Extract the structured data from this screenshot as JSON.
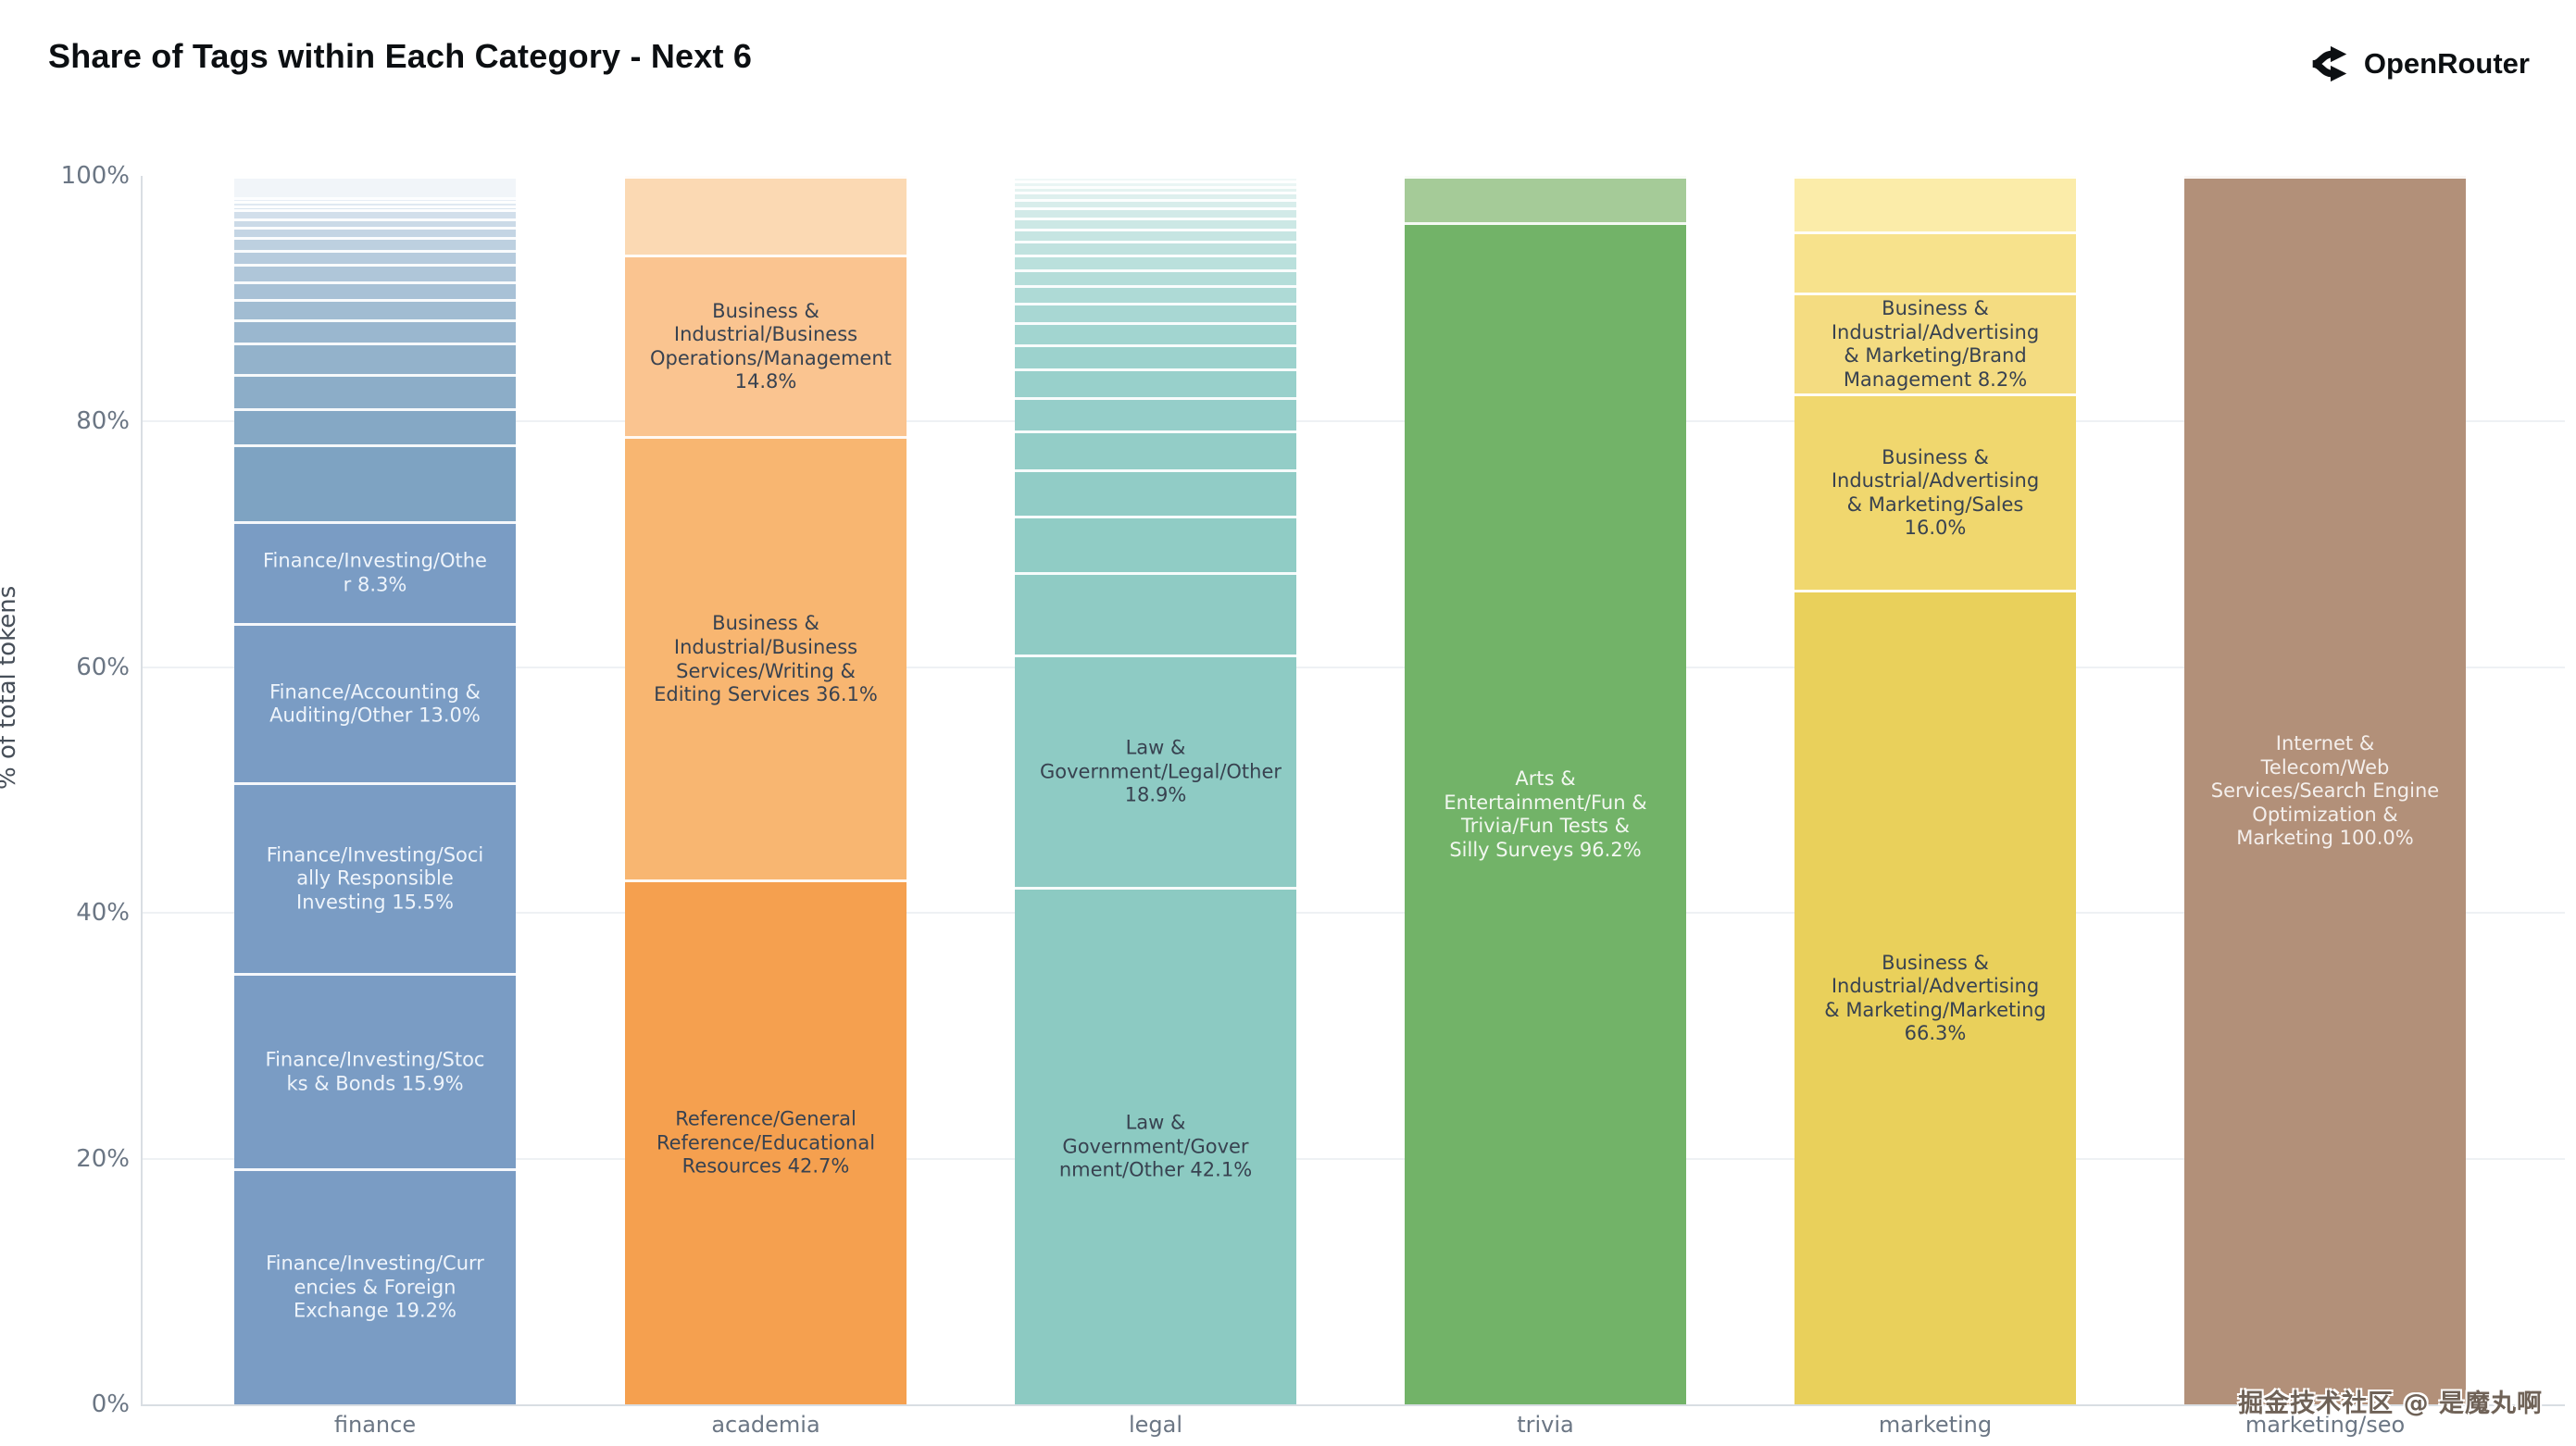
{
  "header": {
    "title": "Share of Tags within Each Category - Next 6",
    "brand": "OpenRouter"
  },
  "watermark": "掘金技术社区 @ 是魔丸啊",
  "chart_data": {
    "type": "bar",
    "stacked": true,
    "orientation": "vertical",
    "title": "Share of Tags within Each Category - Next 6",
    "xlabel": "",
    "ylabel": "% of total tokens",
    "ylim": [
      0,
      100
    ],
    "yticks": [
      "0%",
      "20%",
      "40%",
      "60%",
      "80%",
      "100%"
    ],
    "grid": "horizontal-faint",
    "legend": "none",
    "categories": [
      "finance",
      "academia",
      "legal",
      "trivia",
      "marketing",
      "marketing/seo"
    ],
    "bars": [
      {
        "category": "finance",
        "base_color": "#7a9cc4",
        "segments": [
          {
            "tag": "",
            "pct": 1.7,
            "color": "#f1f5f9",
            "label": "",
            "label_color": ""
          },
          {
            "tag": "",
            "pct": 0.35,
            "color": "#e7eef5",
            "label": "",
            "label_color": ""
          },
          {
            "tag": "",
            "pct": 0.35,
            "color": "#e0e9f2",
            "label": "",
            "label_color": ""
          },
          {
            "tag": "",
            "pct": 0.3,
            "color": "#d9e4ee",
            "label": "",
            "label_color": ""
          },
          {
            "tag": "",
            "pct": 0.75,
            "color": "#d2dfeb",
            "label": "",
            "label_color": ""
          },
          {
            "tag": "",
            "pct": 0.7,
            "color": "#cbdae7",
            "label": "",
            "label_color": ""
          },
          {
            "tag": "",
            "pct": 0.85,
            "color": "#c4d5e4",
            "label": "",
            "label_color": ""
          },
          {
            "tag": "",
            "pct": 1.0,
            "color": "#bdd0e0",
            "label": "",
            "label_color": ""
          },
          {
            "tag": "",
            "pct": 1.2,
            "color": "#b6cbdd",
            "label": "",
            "label_color": ""
          },
          {
            "tag": "",
            "pct": 1.4,
            "color": "#afc6d9",
            "label": "",
            "label_color": ""
          },
          {
            "tag": "",
            "pct": 1.45,
            "color": "#a8c1d6",
            "label": "",
            "label_color": ""
          },
          {
            "tag": "",
            "pct": 1.65,
            "color": "#a1bcd2",
            "label": "",
            "label_color": ""
          },
          {
            "tag": "",
            "pct": 1.9,
            "color": "#9ab7cf",
            "label": "",
            "label_color": ""
          },
          {
            "tag": "",
            "pct": 2.5,
            "color": "#93b2cb",
            "label": "",
            "label_color": ""
          },
          {
            "tag": "",
            "pct": 2.8,
            "color": "#8cadc8",
            "label": "",
            "label_color": ""
          },
          {
            "tag": "",
            "pct": 3.0,
            "color": "#85a8c5",
            "label": "",
            "label_color": ""
          },
          {
            "tag": "",
            "pct": 6.2,
            "color": "#7ea3c2",
            "label": "",
            "label_color": ""
          },
          {
            "tag": "Finance/Investing/Other",
            "pct": 8.3,
            "color": "#7a9cc4",
            "label": "Finance/Investing/Othe\nr 8.3%",
            "label_color": "#eef4fb"
          },
          {
            "tag": "Finance/Accounting & Auditing/Other",
            "pct": 13.0,
            "color": "#7a9cc4",
            "label": "Finance/Accounting &\nAuditing/Other 13.0%",
            "label_color": "#eef4fb"
          },
          {
            "tag": "Finance/Investing/Socially Responsible Investing",
            "pct": 15.5,
            "color": "#7a9cc4",
            "label": "Finance/Investing/Soci\nally Responsible\nInvesting 15.5%",
            "label_color": "#eef4fb"
          },
          {
            "tag": "Finance/Investing/Stocks & Bonds",
            "pct": 15.9,
            "color": "#7a9cc4",
            "label": "Finance/Investing/Stoc\nks & Bonds 15.9%",
            "label_color": "#eef4fb"
          },
          {
            "tag": "Finance/Investing/Currencies & Foreign Exchange",
            "pct": 19.2,
            "color": "#7a9cc4",
            "label": "Finance/Investing/Curr\nencies & Foreign\nExchange 19.2%",
            "label_color": "#eef4fb"
          }
        ]
      },
      {
        "category": "academia",
        "base_color": "#f5a04f",
        "segments": [
          {
            "tag": "",
            "pct": 6.4,
            "color": "#fbd9b3",
            "label": "",
            "label_color": ""
          },
          {
            "tag": "Business & Industrial/Business Operations/Management",
            "pct": 14.8,
            "color": "#fac490",
            "label": "Business &\nIndustrial/Business\nOperations/Management\n14.8%",
            "label_color": "#384250"
          },
          {
            "tag": "Business & Industrial/Business Services/Writing & Editing Services",
            "pct": 36.1,
            "color": "#f8b671",
            "label": "Business &\nIndustrial/Business\nServices/Writing &\nEditing Services 36.1%",
            "label_color": "#384250"
          },
          {
            "tag": "Reference/General Reference/Educational Resources",
            "pct": 42.7,
            "color": "#f5a04f",
            "label": "Reference/General\nReference/Educational\nResources 42.7%",
            "label_color": "#384250"
          }
        ]
      },
      {
        "category": "legal",
        "base_color": "#8ecbc4",
        "segments": [
          {
            "tag": "",
            "pct": 0.4,
            "color": "#f0f8f7",
            "label": "",
            "label_color": ""
          },
          {
            "tag": "",
            "pct": 0.4,
            "color": "#eaf5f4",
            "label": "",
            "label_color": ""
          },
          {
            "tag": "",
            "pct": 0.5,
            "color": "#e4f3f1",
            "label": "",
            "label_color": ""
          },
          {
            "tag": "",
            "pct": 0.6,
            "color": "#def0ee",
            "label": "",
            "label_color": ""
          },
          {
            "tag": "",
            "pct": 0.7,
            "color": "#d8edeb",
            "label": "",
            "label_color": ""
          },
          {
            "tag": "",
            "pct": 0.8,
            "color": "#d2eae8",
            "label": "",
            "label_color": ""
          },
          {
            "tag": "",
            "pct": 0.9,
            "color": "#cce8e5",
            "label": "",
            "label_color": ""
          },
          {
            "tag": "",
            "pct": 1.0,
            "color": "#c6e5e2",
            "label": "",
            "label_color": ""
          },
          {
            "tag": "",
            "pct": 1.1,
            "color": "#c0e2df",
            "label": "",
            "label_color": ""
          },
          {
            "tag": "",
            "pct": 1.2,
            "color": "#bae0dc",
            "label": "",
            "label_color": ""
          },
          {
            "tag": "",
            "pct": 1.3,
            "color": "#b4ddd9",
            "label": "",
            "label_color": ""
          },
          {
            "tag": "",
            "pct": 1.4,
            "color": "#aedad6",
            "label": "",
            "label_color": ""
          },
          {
            "tag": "",
            "pct": 1.6,
            "color": "#a8d7d3",
            "label": "",
            "label_color": ""
          },
          {
            "tag": "",
            "pct": 1.8,
            "color": "#a2d5d0",
            "label": "",
            "label_color": ""
          },
          {
            "tag": "",
            "pct": 2.0,
            "color": "#9cd2cd",
            "label": "",
            "label_color": ""
          },
          {
            "tag": "",
            "pct": 2.3,
            "color": "#98d0cb",
            "label": "",
            "label_color": ""
          },
          {
            "tag": "",
            "pct": 2.7,
            "color": "#95cec9",
            "label": "",
            "label_color": ""
          },
          {
            "tag": "",
            "pct": 3.2,
            "color": "#93cdc7",
            "label": "",
            "label_color": ""
          },
          {
            "tag": "",
            "pct": 3.8,
            "color": "#91ccc6",
            "label": "",
            "label_color": ""
          },
          {
            "tag": "",
            "pct": 4.6,
            "color": "#90ccc5",
            "label": "",
            "label_color": ""
          },
          {
            "tag": "",
            "pct": 6.7,
            "color": "#8fcbc4",
            "label": "",
            "label_color": ""
          },
          {
            "tag": "Law & Government/Legal/Other",
            "pct": 18.9,
            "color": "#8ecbc4",
            "label": "Law &\nGovernment/Legal/Other\n18.9%",
            "label_color": "#384250"
          },
          {
            "tag": "Law & Government/Government/Other",
            "pct": 42.1,
            "color": "#8ccac2",
            "label": "Law & Government/Gover\nnment/Other 42.1%",
            "label_color": "#384250"
          }
        ]
      },
      {
        "category": "trivia",
        "base_color": "#72b368",
        "segments": [
          {
            "tag": "",
            "pct": 3.8,
            "color": "#a5cb98",
            "label": "",
            "label_color": ""
          },
          {
            "tag": "Arts & Entertainment/Fun & Trivia/Fun Tests & Silly Surveys",
            "pct": 96.2,
            "color": "#72b368",
            "label": "Arts &\nEntertainment/Fun &\nTrivia/Fun Tests &\nSilly Surveys 96.2%",
            "label_color": "#f2f7f0"
          }
        ]
      },
      {
        "category": "marketing",
        "base_color": "#e9d05b",
        "segments": [
          {
            "tag": "",
            "pct": 4.5,
            "color": "#fbeca9",
            "label": "",
            "label_color": ""
          },
          {
            "tag": "",
            "pct": 5.0,
            "color": "#f7e28c",
            "label": "",
            "label_color": ""
          },
          {
            "tag": "Business & Industrial/Advertising & Marketing/Brand Management",
            "pct": 8.2,
            "color": "#f4dc81",
            "label": "Business &\nIndustrial/Advertising\n& Marketing/Brand\nManagement 8.2%",
            "label_color": "#384250"
          },
          {
            "tag": "Business & Industrial/Advertising & Marketing/Sales",
            "pct": 16.0,
            "color": "#f0d76e",
            "label": "Business &\nIndustrial/Advertising\n& Marketing/Sales\n16.0%",
            "label_color": "#384250"
          },
          {
            "tag": "Business & Industrial/Advertising & Marketing/Marketing",
            "pct": 66.3,
            "color": "#e9d05b",
            "label": "Business &\nIndustrial/Advertising\n& Marketing/Marketing\n66.3%",
            "label_color": "#384250"
          }
        ]
      },
      {
        "category": "marketing/seo",
        "base_color": "#b29079",
        "segments": [
          {
            "tag": "Internet & Telecom/Web Services/Search Engine Optimization & Marketing",
            "pct": 100.0,
            "color": "#b29079",
            "label": "Internet & Telecom/Web\nServices/Search Engine\nOptimization &\nMarketing 100.0%",
            "label_color": "#f4efec"
          }
        ]
      }
    ]
  }
}
